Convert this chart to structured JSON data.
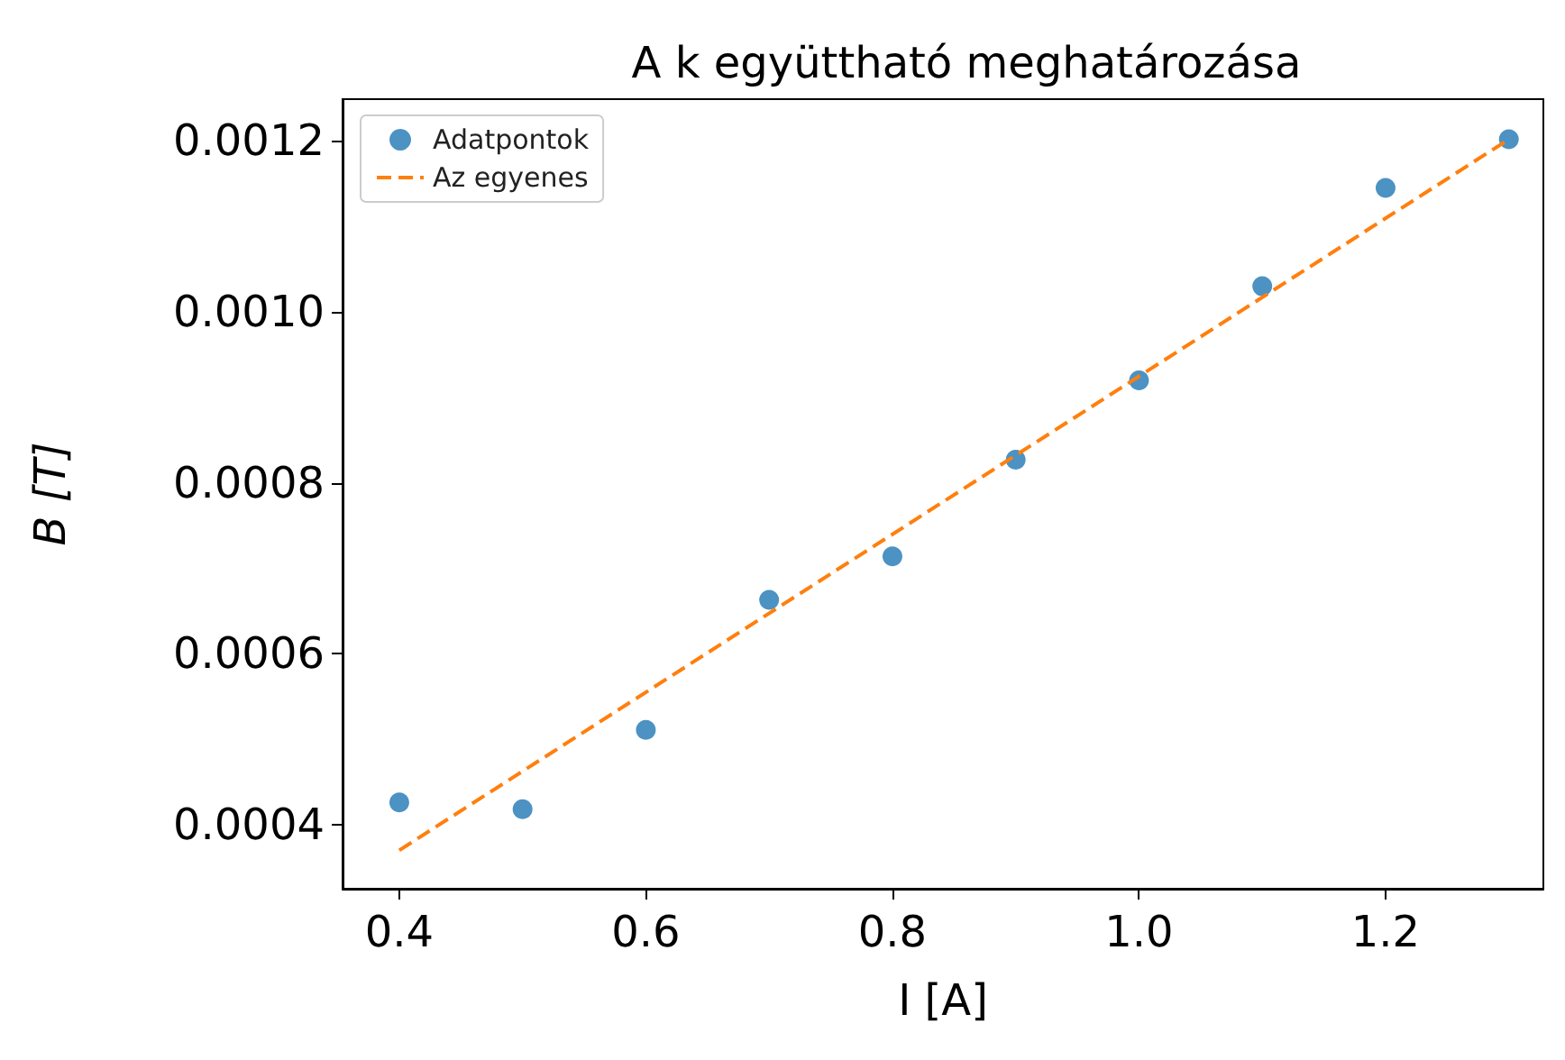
{
  "chart_data": {
    "type": "scatter",
    "title": "A k együttható meghatározása",
    "xlabel": "I [A]",
    "ylabel": "B [T]",
    "x": [
      0.4,
      0.5,
      0.6,
      0.7,
      0.8,
      0.9,
      1.0,
      1.1,
      1.2,
      1.3
    ],
    "series": [
      {
        "name": "Adatpontok",
        "color": "#1f77b4",
        "marker": "circle",
        "values": [
          0.000426,
          0.000418,
          0.000511,
          0.000663,
          0.000714,
          0.000827,
          0.00092,
          0.00103,
          0.001145,
          0.001202
        ]
      },
      {
        "name": "Az egyenes",
        "type": "line",
        "color": "#ff7f0e",
        "line_style": "dashed",
        "marker": "none",
        "x": [
          0.4,
          1.3
        ],
        "values": [
          0.00037,
          0.001202
        ]
      }
    ],
    "xlim": [
      0.354,
      1.328
    ],
    "ylim": [
      0.000325,
      0.001249
    ],
    "xticks": [
      0.4,
      0.6,
      0.8,
      {
        "value": 1,
        "label": "1.0"
      },
      1.2
    ],
    "yticks": [
      0.0004,
      0.0006,
      0.0008,
      {
        "value": 0.001,
        "label": "0.0010"
      },
      0.0012
    ],
    "grid": false,
    "legend": "top left"
  }
}
